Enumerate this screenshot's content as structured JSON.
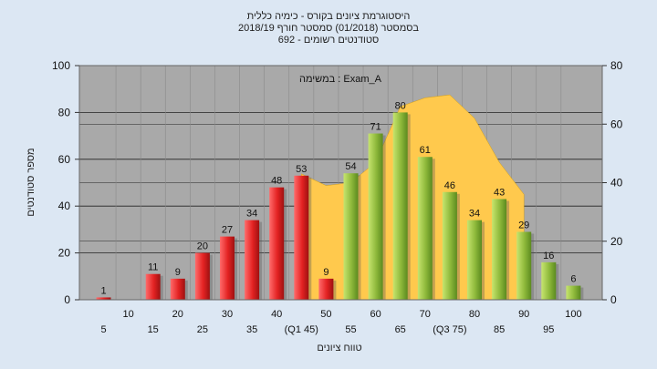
{
  "chart_data": {
    "type": "bar",
    "title_lines": [
      "היסטוגרמת ציונים בקורס - כימיה כללית",
      "בסמסטר  (01/2018)  סמסטר חורף 2018/19",
      "סטודנטים רשומים - 692"
    ],
    "xlabel": "טווח ציונים",
    "ylabel": "מספר סטודנטים",
    "ylim": [
      0,
      100
    ],
    "y2lim": [
      0,
      80
    ],
    "yticks": [
      0,
      20,
      40,
      60,
      80,
      100
    ],
    "y2ticks": [
      0,
      20,
      40,
      60,
      80
    ],
    "grid": true,
    "annotation": "במשימה : Exam_A",
    "x_labels_row1": [
      "5",
      "15",
      "25",
      "35",
      "(Q1 45)",
      "55",
      "65",
      "(Q3 75)",
      "85",
      "95"
    ],
    "x_labels_row2": [
      "10",
      "20",
      "30",
      "40",
      "50",
      "60",
      "70",
      "80",
      "90",
      "100"
    ],
    "series": [
      {
        "values": [
          1,
          0,
          11,
          9,
          20,
          27,
          34,
          48,
          53,
          9,
          54,
          71,
          80,
          61,
          46,
          34,
          43,
          29,
          16,
          6
        ],
        "data_labels": [
          "1",
          "",
          "11",
          "9",
          "20",
          "27",
          "34",
          "48",
          "53",
          "9",
          "54",
          "71",
          "80",
          "61",
          "46",
          "34",
          "43",
          "29",
          "16",
          "6"
        ],
        "bar_colors": [
          "red",
          "red",
          "red",
          "red",
          "red",
          "red",
          "red",
          "red",
          "red",
          "red",
          "green",
          "green",
          "green",
          "green",
          "green",
          "green",
          "green",
          "green",
          "green",
          "green"
        ]
      },
      {
        "type": "area",
        "values": [
          43,
          39,
          40,
          47,
          66,
          69,
          70,
          62,
          47,
          36
        ]
      }
    ],
    "colors": {
      "plot_bg": "#a9a9a9",
      "red": "#e53935",
      "green": "#8fbf3a",
      "area": "#ffc94d",
      "page_bg": "#dce7f3"
    }
  }
}
